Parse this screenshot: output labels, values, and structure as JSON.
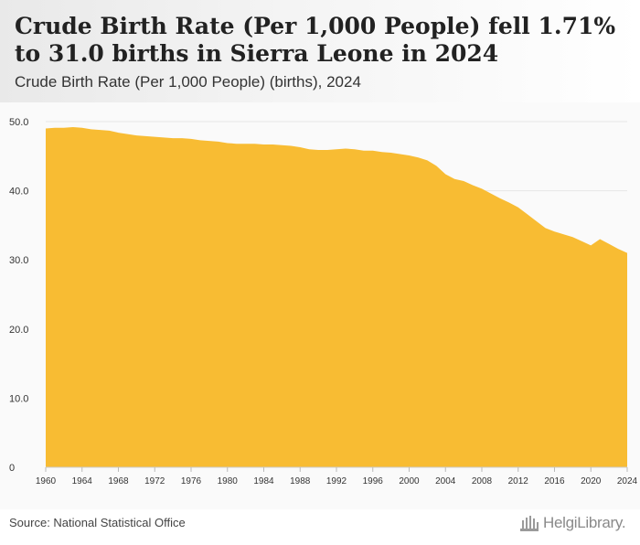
{
  "header": {
    "title": "Crude Birth Rate (Per 1,000 People) fell 1.71% to 31.0 births in Sierra Leone in 2024",
    "subtitle": "Crude Birth Rate (Per 1,000 People) (births), 2024"
  },
  "footer": {
    "source": "Source: National Statistical Office",
    "logo_text": "HelgiLibrary."
  },
  "colors": {
    "area_fill": "#f8bc33",
    "grid": "#e6e6e6",
    "tick_text": "#333333"
  },
  "chart_data": {
    "type": "area",
    "title": "Crude Birth Rate (Per 1,000 People) fell 1.71% to 31.0 births in Sierra Leone in 2024",
    "subtitle": "Crude Birth Rate (Per 1,000 People) (births), 2024",
    "xlabel": "",
    "ylabel": "",
    "ylim": [
      0,
      50
    ],
    "xlim": [
      1960,
      2024
    ],
    "grid": true,
    "legend": "none",
    "y_ticks": [
      0,
      10,
      20,
      30,
      40,
      50
    ],
    "y_tick_labels": [
      "0",
      "10.0",
      "20.0",
      "30.0",
      "40.0",
      "50.0"
    ],
    "x_ticks": [
      "1960",
      "1964",
      "1968",
      "1972",
      "1976",
      "1980",
      "1984",
      "1988",
      "1992",
      "1996",
      "2000",
      "2004",
      "2008",
      "2012",
      "2016",
      "2020",
      "2024"
    ],
    "series": [
      {
        "x": [
          1960,
          1961,
          1962,
          1963,
          1964,
          1965,
          1966,
          1967,
          1968,
          1969,
          1970,
          1971,
          1972,
          1973,
          1974,
          1975,
          1976,
          1977,
          1978,
          1979,
          1980,
          1981,
          1982,
          1983,
          1984,
          1985,
          1986,
          1987,
          1988,
          1989,
          1990,
          1991,
          1992,
          1993,
          1994,
          1995,
          1996,
          1997,
          1998,
          1999,
          2000,
          2001,
          2002,
          2003,
          2004,
          2005,
          2006,
          2007,
          2008,
          2009,
          2010,
          2011,
          2012,
          2013,
          2014,
          2015,
          2016,
          2017,
          2018,
          2019,
          2020,
          2021,
          2022,
          2023,
          2024
        ],
        "values": [
          49.0,
          49.1,
          49.1,
          49.2,
          49.1,
          48.9,
          48.8,
          48.7,
          48.4,
          48.2,
          48.0,
          47.9,
          47.8,
          47.7,
          47.6,
          47.6,
          47.5,
          47.3,
          47.2,
          47.1,
          46.9,
          46.8,
          46.8,
          46.8,
          46.7,
          46.7,
          46.6,
          46.5,
          46.3,
          46.0,
          45.9,
          45.9,
          46.0,
          46.1,
          46.0,
          45.8,
          45.8,
          45.6,
          45.5,
          45.3,
          45.1,
          44.8,
          44.4,
          43.6,
          42.4,
          41.7,
          41.4,
          40.8,
          40.3,
          39.6,
          38.9,
          38.3,
          37.6,
          36.6,
          35.6,
          34.6,
          34.1,
          33.7,
          33.3,
          32.7,
          32.1,
          33.0,
          32.3,
          31.6,
          31.0
        ]
      }
    ]
  }
}
